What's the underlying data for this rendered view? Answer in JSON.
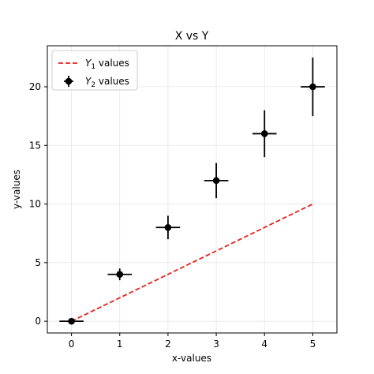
{
  "chart_data": {
    "type": "line",
    "title": "X vs Y",
    "xlabel": "x-values",
    "ylabel": "y-values",
    "xlim": [
      -0.5,
      5.5
    ],
    "ylim": [
      -1,
      23.5
    ],
    "xticks": [
      0,
      1,
      2,
      3,
      4,
      5
    ],
    "xtick_labels": [
      "0",
      "1",
      "2",
      "3",
      "4",
      "5"
    ],
    "yticks": [
      0,
      5,
      10,
      15,
      20
    ],
    "ytick_labels": [
      "0",
      "5",
      "10",
      "15",
      "20"
    ],
    "grid": true,
    "legend_position": "upper-left",
    "series": [
      {
        "name": "Y1 values",
        "legend": {
          "var": "Y",
          "sub": "1",
          "suffix": " values"
        },
        "kind": "line",
        "style": "dashed",
        "color": "#e8211b",
        "x": [
          0,
          5
        ],
        "y": [
          0,
          10
        ]
      },
      {
        "name": "Y2 values",
        "legend": {
          "var": "Y",
          "sub": "2",
          "suffix": " values"
        },
        "kind": "errorbar",
        "color": "#000000",
        "x": [
          0,
          1,
          2,
          3,
          4,
          5
        ],
        "y": [
          0,
          4,
          8,
          12,
          16,
          20
        ],
        "xerr": [
          0.25,
          0.25,
          0.25,
          0.25,
          0.25,
          0.25
        ],
        "yerr": [
          0,
          0.5,
          1,
          1.5,
          2,
          2.5
        ]
      }
    ]
  }
}
